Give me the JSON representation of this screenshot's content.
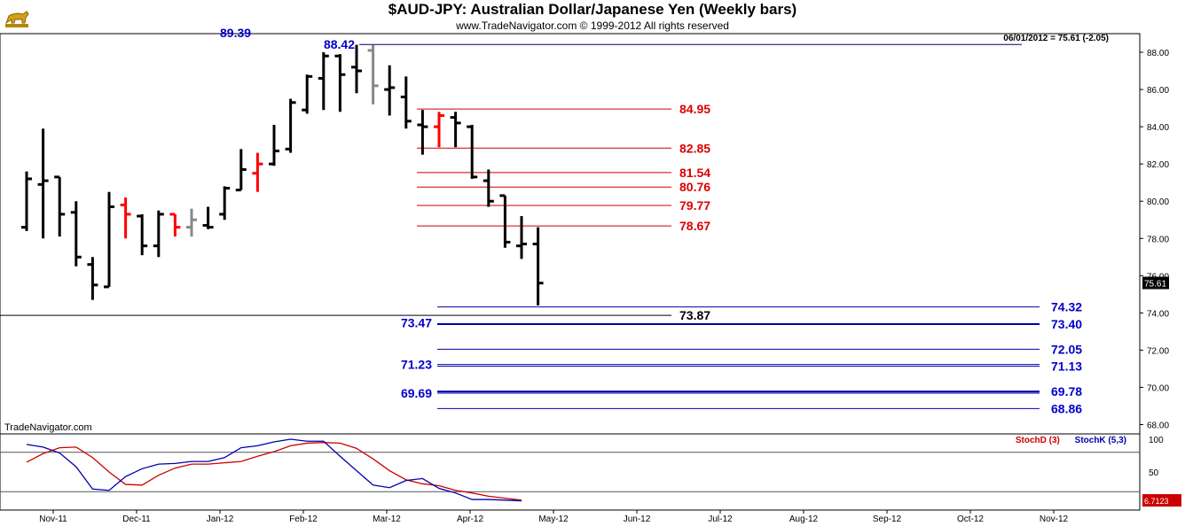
{
  "header": {
    "title": "$AUD-JPY:  Australian Dollar/Japanese Yen  (Weekly bars)",
    "copyright": "www.TradeNavigator.com © 1999-2012 All rights reserved",
    "readout": "06/01/2012 = 75.61 (-2.05)",
    "brand_label": "TradeNavigator.com",
    "logo_icon": "gold-bull-logo-icon"
  },
  "chart_data": {
    "type": "ohlc",
    "frequency": "weekly",
    "price_axis": {
      "ylim": [
        67.5,
        89.0
      ],
      "ticks": [
        "88.00",
        "86.00",
        "84.00",
        "82.00",
        "80.00",
        "78.00",
        "76.00",
        "74.00",
        "72.00",
        "70.00",
        "68.00"
      ]
    },
    "x_tick_labels": [
      "Nov-11",
      "Dec-11",
      "Jan-12",
      "Feb-12",
      "Mar-12",
      "Apr-12",
      "May-12",
      "Jun-12",
      "Jul-12",
      "Aug-12",
      "Sep-12",
      "Oct-12",
      "Nov-12"
    ],
    "last_price_label": "75.61",
    "bar_colors": {
      "default": "#000000",
      "red": "#ff0000",
      "gray": "#888888"
    },
    "bars": [
      {
        "o": 78.6,
        "h": 81.6,
        "l": 78.4,
        "c": 81.2,
        "color": "default"
      },
      {
        "o": 80.9,
        "h": 83.9,
        "l": 78.0,
        "c": 81.1,
        "color": "default"
      },
      {
        "o": 81.3,
        "h": 81.3,
        "l": 78.1,
        "c": 79.3,
        "color": "default"
      },
      {
        "o": 79.4,
        "h": 80.0,
        "l": 76.5,
        "c": 77.0,
        "color": "default"
      },
      {
        "o": 76.6,
        "h": 77.0,
        "l": 74.7,
        "c": 75.5,
        "color": "default"
      },
      {
        "o": 75.4,
        "h": 80.5,
        "l": 75.4,
        "c": 79.7,
        "color": "default"
      },
      {
        "o": 79.8,
        "h": 80.2,
        "l": 78.0,
        "c": 79.3,
        "color": "red"
      },
      {
        "o": 79.2,
        "h": 79.3,
        "l": 77.1,
        "c": 77.6,
        "color": "default"
      },
      {
        "o": 77.6,
        "h": 79.5,
        "l": 77.0,
        "c": 79.3,
        "color": "default"
      },
      {
        "o": 79.3,
        "h": 79.3,
        "l": 78.1,
        "c": 78.6,
        "color": "red"
      },
      {
        "o": 78.6,
        "h": 79.6,
        "l": 78.1,
        "c": 79.0,
        "color": "gray"
      },
      {
        "o": 78.7,
        "h": 79.7,
        "l": 78.5,
        "c": 78.6,
        "color": "default"
      },
      {
        "o": 79.3,
        "h": 80.8,
        "l": 79.0,
        "c": 80.7,
        "color": "default"
      },
      {
        "o": 80.6,
        "h": 82.8,
        "l": 80.6,
        "c": 81.7,
        "color": "default"
      },
      {
        "o": 81.5,
        "h": 82.6,
        "l": 80.5,
        "c": 82.0,
        "color": "red"
      },
      {
        "o": 82.0,
        "h": 84.1,
        "l": 81.9,
        "c": 82.7,
        "color": "default"
      },
      {
        "o": 82.8,
        "h": 85.5,
        "l": 82.6,
        "c": 85.3,
        "color": "default"
      },
      {
        "o": 84.9,
        "h": 86.8,
        "l": 84.7,
        "c": 86.7,
        "color": "default"
      },
      {
        "o": 86.6,
        "h": 88.0,
        "l": 84.9,
        "c": 87.8,
        "color": "default"
      },
      {
        "o": 87.8,
        "h": 87.9,
        "l": 84.8,
        "c": 86.8,
        "color": "default"
      },
      {
        "o": 87.2,
        "h": 88.4,
        "l": 85.8,
        "c": 87.0,
        "color": "default"
      },
      {
        "o": 88.1,
        "h": 88.4,
        "l": 85.2,
        "c": 86.2,
        "color": "gray"
      },
      {
        "o": 86.0,
        "h": 87.3,
        "l": 84.6,
        "c": 86.1,
        "color": "default"
      },
      {
        "o": 85.6,
        "h": 86.7,
        "l": 83.9,
        "c": 84.3,
        "color": "default"
      },
      {
        "o": 84.1,
        "h": 84.9,
        "l": 82.5,
        "c": 84.0,
        "color": "default"
      },
      {
        "o": 84.0,
        "h": 84.8,
        "l": 82.9,
        "c": 84.6,
        "color": "red"
      },
      {
        "o": 84.5,
        "h": 84.8,
        "l": 82.9,
        "c": 84.2,
        "color": "default"
      },
      {
        "o": 84.0,
        "h": 84.1,
        "l": 81.2,
        "c": 81.3,
        "color": "default"
      },
      {
        "o": 81.1,
        "h": 81.7,
        "l": 79.7,
        "c": 80.0,
        "color": "default"
      },
      {
        "o": 80.3,
        "h": 80.3,
        "l": 77.5,
        "c": 77.8,
        "color": "default"
      },
      {
        "o": 77.6,
        "h": 79.2,
        "l": 76.9,
        "c": 77.7,
        "color": "default"
      },
      {
        "o": 77.7,
        "h": 78.6,
        "l": 74.4,
        "c": 75.6,
        "color": "default"
      }
    ],
    "annotations": [
      {
        "label": "88.42",
        "value": 88.42,
        "color": "blue"
      },
      {
        "label": "84.95",
        "value": 84.95,
        "color": "red"
      },
      {
        "label": "82.85",
        "value": 82.85,
        "color": "red"
      },
      {
        "label": "81.54",
        "value": 81.54,
        "color": "red"
      },
      {
        "label": "80.76",
        "value": 80.76,
        "color": "red"
      },
      {
        "label": "79.77",
        "value": 79.77,
        "color": "red"
      },
      {
        "label": "78.67",
        "value": 78.67,
        "color": "red"
      },
      {
        "label": "74.32",
        "value": 74.32,
        "color": "blue"
      },
      {
        "label": "73.87",
        "value": 73.87,
        "color": "black"
      },
      {
        "label": "73.47",
        "value": 73.47,
        "color": "blue"
      },
      {
        "label": "73.40",
        "value": 73.4,
        "color": "blue"
      },
      {
        "label": "72.05",
        "value": 72.05,
        "color": "blue"
      },
      {
        "label": "71.23",
        "value": 71.23,
        "color": "blue"
      },
      {
        "label": "71.13",
        "value": 71.13,
        "color": "blue"
      },
      {
        "label": "69.78",
        "value": 69.78,
        "color": "blue"
      },
      {
        "label": "69.69",
        "value": 69.69,
        "color": "blue"
      },
      {
        "label": "68.86",
        "value": 68.86,
        "color": "blue"
      }
    ],
    "partial_label": "89.39",
    "stochastic": {
      "d_label": "StochD (3)",
      "k_label": "StochK (5,3)",
      "ylim": [
        0,
        100
      ],
      "ticks": [
        "100",
        "50"
      ],
      "levels": [
        80,
        20
      ],
      "last_value_label": "6.7123",
      "d_color": "#cc0000",
      "k_color": "#0000aa",
      "d_values": [
        65,
        78,
        87,
        88,
        72,
        50,
        31,
        30,
        45,
        56,
        62,
        62,
        64,
        66,
        74,
        81,
        90,
        94,
        95,
        94,
        86,
        70,
        52,
        38,
        32,
        29,
        22,
        18,
        13,
        10,
        7
      ],
      "k_values": [
        92,
        88,
        79,
        58,
        24,
        22,
        43,
        55,
        62,
        63,
        66,
        66,
        72,
        87,
        90,
        96,
        100,
        97,
        97,
        74,
        52,
        30,
        26,
        37,
        40,
        25,
        18,
        8,
        8,
        7,
        6
      ]
    }
  }
}
